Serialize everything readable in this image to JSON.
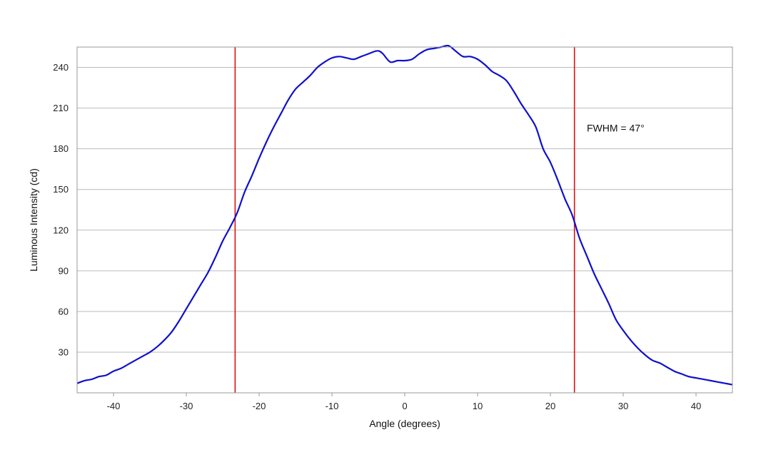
{
  "chart_data": {
    "type": "line",
    "title": "",
    "xlabel": "Angle (degrees)",
    "ylabel": "Luminous Intensity (cd)",
    "xlim": [
      -45,
      45
    ],
    "ylim": [
      0,
      255
    ],
    "xticks": [
      -40,
      -30,
      -20,
      -10,
      0,
      10,
      20,
      30,
      40
    ],
    "yticks": [
      30,
      60,
      90,
      120,
      150,
      180,
      210,
      240
    ],
    "grid": "horizontal",
    "colors": {
      "series": "#1010cc",
      "marker": "#dd1111",
      "grid": "#bbbbbb",
      "frame": "#999999"
    },
    "series": [
      {
        "x": [
          -45,
          -44,
          -43,
          -42,
          -41,
          -40,
          -39,
          -38,
          -37,
          -36,
          -35,
          -34,
          -33,
          -32,
          -31,
          -30,
          -29,
          -28,
          -27,
          -26,
          -25,
          -24,
          -23,
          -22,
          -21,
          -20,
          -19,
          -18,
          -17,
          -16,
          -15,
          -14,
          -13,
          -12,
          -11,
          -10,
          -9,
          -8,
          -7,
          -6,
          -5,
          -4,
          -3.5,
          -3,
          -2,
          -1,
          0,
          1,
          2,
          3,
          4,
          5,
          6,
          7,
          8,
          9,
          10,
          11,
          12,
          13,
          14,
          15,
          16,
          17,
          18,
          19,
          20,
          21,
          22,
          23,
          24,
          25,
          26,
          27,
          28,
          29,
          30,
          31,
          32,
          33,
          34,
          35,
          36,
          37,
          38,
          39,
          40,
          41,
          42,
          43,
          44,
          45
        ],
        "y": [
          7,
          9,
          10,
          12,
          13,
          16,
          18,
          21,
          24,
          27,
          30,
          34,
          39,
          45,
          53,
          62,
          71,
          80,
          89,
          100,
          112,
          122,
          133,
          148,
          160,
          173,
          185,
          196,
          206,
          216,
          224,
          229,
          234,
          240,
          244,
          247,
          248,
          247,
          246,
          248,
          250,
          252,
          252,
          250,
          244,
          245,
          245,
          246,
          250,
          253,
          254,
          255,
          256,
          252,
          248,
          248,
          246,
          242,
          237,
          234,
          230,
          222,
          213,
          205,
          196,
          180,
          170,
          157,
          143,
          131,
          114,
          101,
          88,
          77,
          66,
          54,
          46,
          39,
          33,
          28,
          24,
          22,
          19,
          16,
          14,
          12,
          11,
          10,
          9,
          8,
          7,
          6
        ]
      }
    ],
    "vlines": [
      -23.3,
      23.3
    ],
    "annotations": [
      {
        "text": "FWHM = 47°",
        "x": 25,
        "y": 195
      }
    ]
  }
}
